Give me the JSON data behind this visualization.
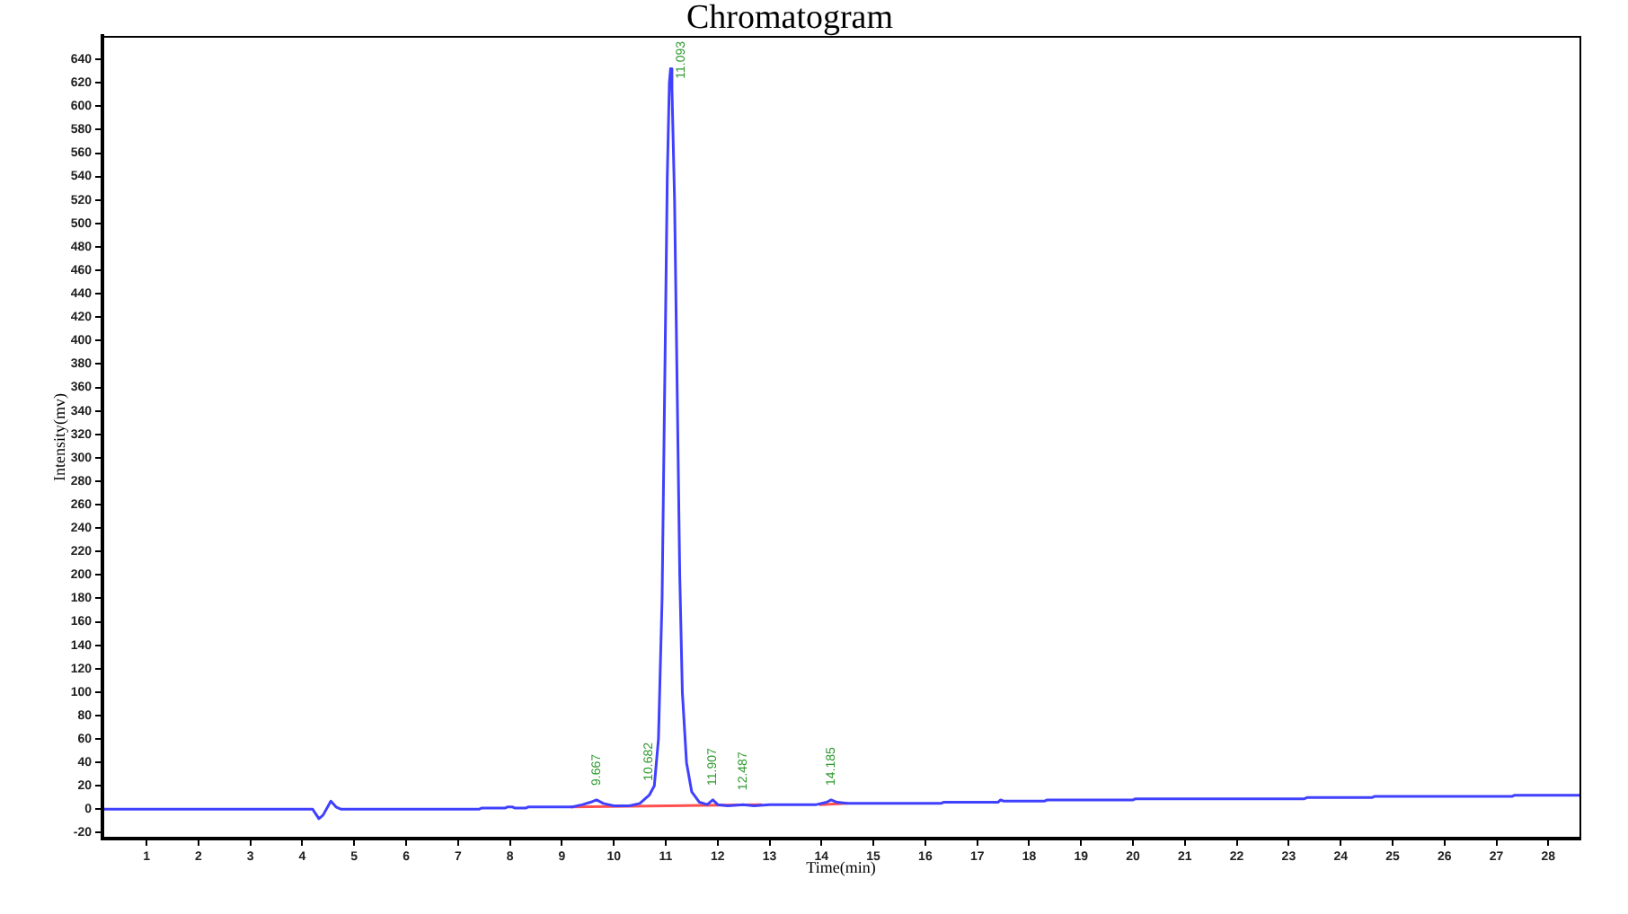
{
  "chart_data": {
    "type": "line",
    "title": "Chromatogram",
    "xlabel": "Time(min)",
    "ylabel": "Intensity(mv)",
    "xlim": [
      0.15,
      28.6
    ],
    "xticks": [
      1,
      2,
      3,
      4,
      5,
      6,
      7,
      8,
      9,
      10,
      11,
      12,
      13,
      14,
      15,
      16,
      17,
      18,
      19,
      20,
      21,
      22,
      23,
      24,
      25,
      26,
      27,
      28
    ],
    "ylim": [
      -25,
      660
    ],
    "yticks": [
      -20,
      0,
      20,
      40,
      60,
      80,
      100,
      120,
      140,
      160,
      180,
      200,
      220,
      240,
      260,
      280,
      300,
      320,
      340,
      360,
      380,
      400,
      420,
      440,
      460,
      480,
      500,
      520,
      540,
      560,
      580,
      600,
      620,
      640
    ],
    "grid": false,
    "legend": false,
    "marker": "none",
    "line_style": "solid",
    "series": [
      {
        "color": "#4040ff",
        "x": [
          0.15,
          4.2,
          4.32,
          4.4,
          4.55,
          4.65,
          4.75,
          7.4,
          7.45,
          7.9,
          7.95,
          8.05,
          8.1,
          8.3,
          8.35,
          9.0,
          9.2,
          9.4,
          9.55,
          9.667,
          9.8,
          10.0,
          10.3,
          10.5,
          10.682,
          10.78,
          10.86,
          10.93,
          10.98,
          11.03,
          11.07,
          11.093,
          11.12,
          11.17,
          11.22,
          11.27,
          11.32,
          11.4,
          11.5,
          11.65,
          11.8,
          11.907,
          12.0,
          12.2,
          12.487,
          12.7,
          13.0,
          13.9,
          14.1,
          14.185,
          14.3,
          14.5,
          15.0,
          16.3,
          16.35,
          17.4,
          17.45,
          17.5,
          18.3,
          18.35,
          20.0,
          20.05,
          23.3,
          23.35,
          24.6,
          24.65,
          27.3,
          27.35,
          28.6
        ],
        "values": [
          0,
          0,
          -8,
          -5,
          7,
          2,
          0,
          0,
          1,
          1,
          2,
          2,
          1,
          1,
          2,
          2,
          2,
          4,
          6,
          8,
          5,
          3,
          3,
          5,
          12,
          20,
          60,
          180,
          360,
          540,
          620,
          632,
          615,
          520,
          360,
          200,
          100,
          40,
          15,
          6,
          4,
          8,
          4,
          3,
          4,
          3,
          4,
          4,
          6,
          8,
          6,
          5,
          5,
          5,
          6,
          6,
          8,
          7,
          7,
          8,
          8,
          9,
          9,
          10,
          10,
          11,
          11,
          12,
          12
        ]
      },
      {
        "color": "#ff5050",
        "x": [
          9.17,
          12.84
        ],
        "values": [
          2,
          4
        ]
      },
      {
        "color": "#ff5050",
        "x": [
          13.97,
          14.49
        ],
        "values": [
          4,
          5
        ]
      }
    ],
    "annotations": [
      {
        "text": "9.667",
        "x": 9.667,
        "y": 8
      },
      {
        "text": "10.682",
        "x": 10.682,
        "y": 12
      },
      {
        "text": "11.093",
        "x": 11.093,
        "y": 632
      },
      {
        "text": "11.907",
        "x": 11.907,
        "y": 8
      },
      {
        "text": "12.487",
        "x": 12.487,
        "y": 4
      },
      {
        "text": "14.185",
        "x": 14.185,
        "y": 8
      }
    ]
  }
}
